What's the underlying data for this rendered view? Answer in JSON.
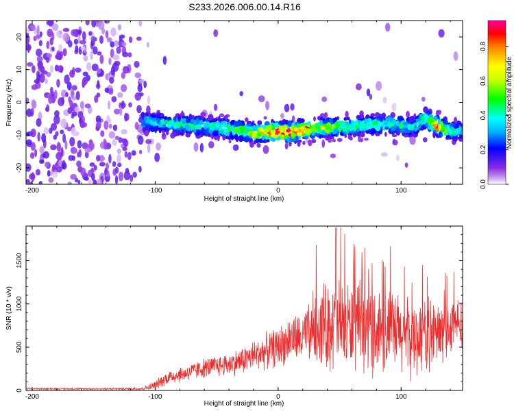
{
  "figure": {
    "title": "S233.2026.006.00.14.R16"
  },
  "chart_data": [
    {
      "type": "heatmap",
      "name": "spectrogram",
      "xlabel": "Height of straight line (km)",
      "ylabel": "Frequency (Hz)",
      "xlim": [
        -205,
        150
      ],
      "ylim": [
        -25,
        25
      ],
      "xticks": [
        -200,
        -100,
        0,
        100
      ],
      "yticks": [
        -20,
        -10,
        0,
        10,
        20
      ],
      "colorbar": {
        "label": "Normalized spectral amplitude",
        "range": [
          0,
          0.95
        ],
        "ticks": [
          0.0,
          0.2,
          0.4,
          0.6,
          0.8
        ]
      },
      "ridge": {
        "description": "dominant spectral ridge (frequency vs height)",
        "x": [
          -110,
          -90,
          -70,
          -50,
          -30,
          -20,
          -10,
          0,
          10,
          20,
          30,
          50,
          70,
          90,
          100,
          110,
          120,
          130,
          140,
          150
        ],
        "y": [
          -6,
          -6.5,
          -7,
          -7.5,
          -8.5,
          -9.5,
          -9,
          -9,
          -9,
          -8.5,
          -8,
          -7.5,
          -7,
          -6.5,
          -7,
          -7.5,
          -5,
          -7.5,
          -8.5,
          -9
        ],
        "amplitude": [
          0.3,
          0.35,
          0.35,
          0.4,
          0.5,
          0.6,
          0.7,
          0.9,
          0.9,
          0.85,
          0.6,
          0.45,
          0.4,
          0.4,
          0.35,
          0.3,
          0.5,
          0.85,
          0.4,
          0.3
        ]
      }
    },
    {
      "type": "line",
      "name": "snr",
      "xlabel": "Height of straight line (km)",
      "ylabel": "SNR (10 * v/v)",
      "xlim": [
        -205,
        150
      ],
      "ylim": [
        0,
        1900
      ],
      "xticks": [
        -200,
        -100,
        0,
        100
      ],
      "yticks": [
        0,
        500,
        1000,
        1500
      ],
      "color": "#ee2f2f",
      "envelope": {
        "description": "approximate mean and spread of the noisy SNR trace",
        "x": [
          -205,
          -150,
          -110,
          -100,
          -90,
          -75,
          -60,
          -45,
          -30,
          -15,
          0,
          10,
          20,
          25,
          30,
          40,
          50,
          60,
          70,
          80,
          90,
          100,
          110,
          120,
          130,
          140,
          150
        ],
        "mean": [
          20,
          18,
          20,
          60,
          150,
          200,
          260,
          290,
          340,
          430,
          500,
          600,
          600,
          660,
          760,
          760,
          760,
          740,
          720,
          700,
          690,
          640,
          600,
          660,
          640,
          730,
          800
        ],
        "spread": [
          10,
          8,
          15,
          50,
          80,
          90,
          110,
          120,
          150,
          180,
          220,
          260,
          280,
          330,
          420,
          500,
          520,
          480,
          480,
          500,
          460,
          450,
          420,
          420,
          380,
          300,
          280
        ],
        "max": 1880
      }
    }
  ]
}
